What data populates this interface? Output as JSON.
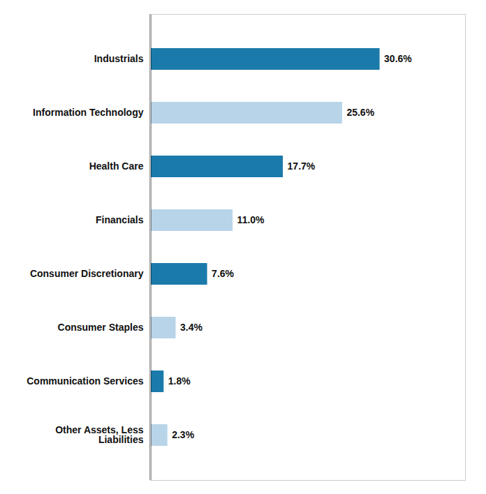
{
  "chart_data": {
    "type": "bar",
    "orientation": "horizontal",
    "categories": [
      "Industrials",
      "Information Technology",
      "Health Care",
      "Financials",
      "Consumer Discretionary",
      "Consumer Staples",
      "Communication Services",
      "Other Assets, Less\nLiabilities"
    ],
    "values": [
      30.6,
      25.6,
      17.7,
      11.0,
      7.6,
      3.4,
      1.8,
      2.3
    ],
    "value_labels": [
      "30.6%",
      "25.6%",
      "17.7%",
      "11.0%",
      "7.6%",
      "3.4%",
      "1.8%",
      "2.3%"
    ],
    "colors": [
      "#1a7aaa",
      "#b8d4e8",
      "#1a7aaa",
      "#b8d4e8",
      "#1a7aaa",
      "#b8d4e8",
      "#1a7aaa",
      "#b8d4e8"
    ],
    "xlim": [
      0,
      42
    ],
    "data_labels": true,
    "tick_labels": "y",
    "grid": false
  }
}
